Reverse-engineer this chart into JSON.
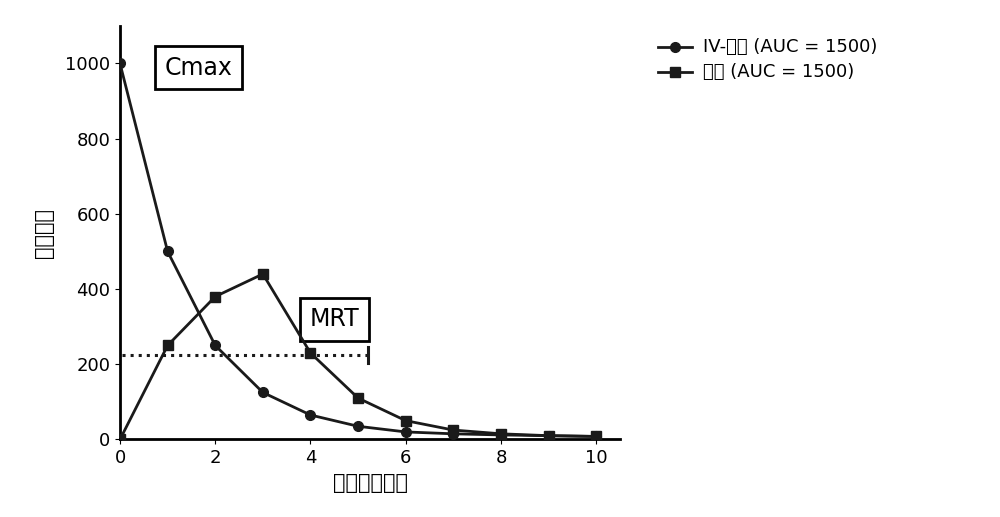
{
  "iv_x": [
    0,
    1,
    2,
    3,
    4,
    5,
    6,
    7,
    8,
    9,
    10
  ],
  "iv_y": [
    1000,
    500,
    250,
    125,
    65,
    35,
    20,
    15,
    12,
    10,
    8
  ],
  "oral_x": [
    0,
    1,
    2,
    3,
    4,
    5,
    6,
    7,
    8,
    9,
    10
  ],
  "oral_y": [
    0,
    250,
    380,
    440,
    230,
    110,
    50,
    25,
    15,
    10,
    8
  ],
  "mrt_y": 225,
  "mrt_x_start": 0.05,
  "mrt_x_end": 5.2,
  "mrt_tick_x": 5.2,
  "cmax_label": "Cmax",
  "mrt_label": "MRT",
  "iv_label": "IV-丸式 (AUC = 1500)",
  "oral_label": "口服 (AUC = 1500)",
  "xlabel": "时间（小时）",
  "ylabel": "药物浓度",
  "xlim": [
    0,
    10.5
  ],
  "ylim": [
    0,
    1100
  ],
  "yticks": [
    0,
    200,
    400,
    600,
    800,
    1000
  ],
  "xticks": [
    0,
    2,
    4,
    6,
    8,
    10
  ],
  "line_color": "#1a1a1a",
  "bg_color": "#ffffff"
}
